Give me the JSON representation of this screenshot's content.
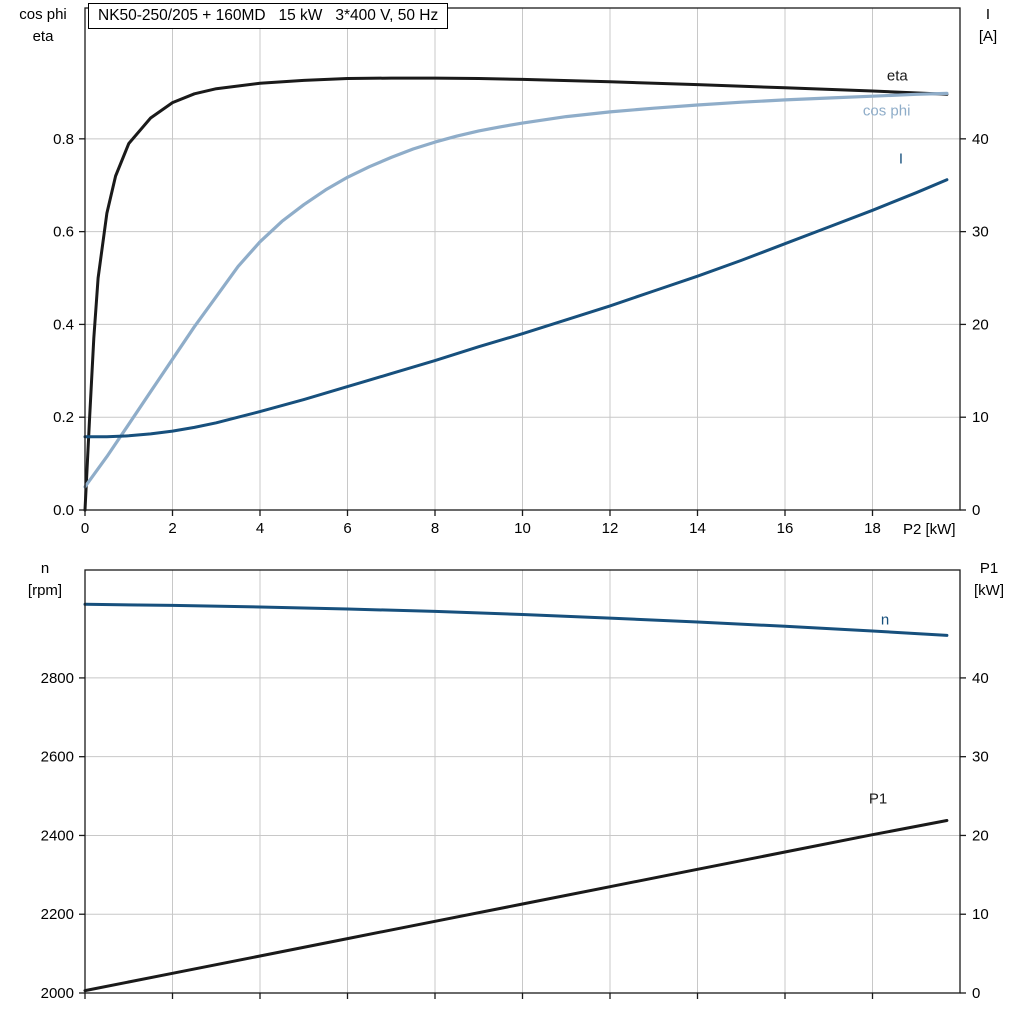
{
  "title_box": {
    "text": "NK50-250/205 + 160MD   15 kW   3*400 V, 50 Hz"
  },
  "axis_corner_labels": {
    "top_left": [
      "cos phi",
      "eta"
    ],
    "top_right": [
      "I",
      "[A]"
    ],
    "bottom_left": [
      "n",
      "[rpm]"
    ],
    "bottom_right": [
      "P1",
      "[kW]"
    ],
    "x_axis_right": "P2 [kW]"
  },
  "colors": {
    "background": "#ffffff",
    "axis": "#1a1a1a",
    "grid": "#c8c8c8",
    "black_curve": "#1a1a1a",
    "dark_blue_curve": "#17507d",
    "light_blue_curve": "#8fadc9"
  },
  "chart_data": [
    {
      "type": "line",
      "title": "NK50-250/205 + 160MD   15 kW   3*400 V, 50 Hz",
      "x_axis": {
        "label": "P2 [kW]",
        "range": [
          0,
          20
        ],
        "ticks": [
          0,
          2,
          4,
          6,
          8,
          10,
          12,
          14,
          16,
          18
        ],
        "tick_labels": [
          "0",
          "2",
          "4",
          "6",
          "8",
          "10",
          "12",
          "14",
          "16",
          "18"
        ]
      },
      "y_left": {
        "label": "cos phi / eta",
        "range": [
          0,
          1.082
        ],
        "ticks": [
          0,
          0.2,
          0.4,
          0.6,
          0.8
        ],
        "tick_labels": [
          "0.0",
          "0.2",
          "0.4",
          "0.6",
          "0.8"
        ]
      },
      "y_right": {
        "label": "I [A]",
        "range": [
          0,
          54.1
        ],
        "ticks": [
          0,
          10,
          20,
          30,
          40
        ],
        "tick_labels": [
          "0",
          "10",
          "20",
          "30",
          "40"
        ]
      },
      "grid": true,
      "legend_position": "inline-right",
      "series": [
        {
          "name": "eta",
          "axis": "left",
          "color": "#1a1a1a",
          "width": 3,
          "label_offset": [
            -60,
            -14
          ],
          "points": [
            [
              0,
              0
            ],
            [
              0.1,
              0.19
            ],
            [
              0.2,
              0.37
            ],
            [
              0.3,
              0.5
            ],
            [
              0.5,
              0.64
            ],
            [
              0.7,
              0.72
            ],
            [
              1,
              0.79
            ],
            [
              1.5,
              0.845
            ],
            [
              2,
              0.878
            ],
            [
              2.5,
              0.897
            ],
            [
              3,
              0.908
            ],
            [
              4,
              0.92
            ],
            [
              5,
              0.926
            ],
            [
              6,
              0.93
            ],
            [
              7,
              0.931
            ],
            [
              8,
              0.931
            ],
            [
              9,
              0.93
            ],
            [
              10,
              0.928
            ],
            [
              12,
              0.923
            ],
            [
              14,
              0.917
            ],
            [
              16,
              0.91
            ],
            [
              18,
              0.903
            ],
            [
              19.7,
              0.896
            ]
          ]
        },
        {
          "name": "cos phi",
          "axis": "left",
          "color": "#8fadc9",
          "width": 3.2,
          "label_offset": [
            -84,
            22
          ],
          "points": [
            [
              0,
              0.05
            ],
            [
              0.5,
              0.115
            ],
            [
              1,
              0.185
            ],
            [
              1.5,
              0.255
            ],
            [
              2,
              0.325
            ],
            [
              2.5,
              0.395
            ],
            [
              3,
              0.46
            ],
            [
              3.5,
              0.525
            ],
            [
              4,
              0.578
            ],
            [
              4.5,
              0.622
            ],
            [
              5,
              0.658
            ],
            [
              5.5,
              0.69
            ],
            [
              6,
              0.717
            ],
            [
              6.5,
              0.74
            ],
            [
              7,
              0.76
            ],
            [
              7.5,
              0.778
            ],
            [
              8,
              0.793
            ],
            [
              8.5,
              0.806
            ],
            [
              9,
              0.817
            ],
            [
              9.5,
              0.826
            ],
            [
              10,
              0.834
            ],
            [
              11,
              0.848
            ],
            [
              12,
              0.858
            ],
            [
              13,
              0.866
            ],
            [
              14,
              0.873
            ],
            [
              15,
              0.879
            ],
            [
              16,
              0.884
            ],
            [
              17,
              0.888
            ],
            [
              18,
              0.892
            ],
            [
              19,
              0.896
            ],
            [
              19.7,
              0.898
            ]
          ]
        },
        {
          "name": "I",
          "axis": "right",
          "color": "#17507d",
          "width": 3,
          "label_offset": [
            -48,
            -16
          ],
          "points": [
            [
              0,
              7.9
            ],
            [
              0.5,
              7.9
            ],
            [
              1,
              8
            ],
            [
              1.5,
              8.2
            ],
            [
              2,
              8.5
            ],
            [
              2.5,
              8.9
            ],
            [
              3,
              9.4
            ],
            [
              3.5,
              10
            ],
            [
              4,
              10.6
            ],
            [
              5,
              11.9
            ],
            [
              6,
              13.3
            ],
            [
              7,
              14.7
            ],
            [
              8,
              16.1
            ],
            [
              9,
              17.6
            ],
            [
              10,
              19
            ],
            [
              11,
              20.5
            ],
            [
              12,
              22
            ],
            [
              13,
              23.6
            ],
            [
              14,
              25.2
            ],
            [
              15,
              26.9
            ],
            [
              16,
              28.7
            ],
            [
              17,
              30.5
            ],
            [
              18,
              32.3
            ],
            [
              19,
              34.2
            ],
            [
              19.7,
              35.6
            ]
          ]
        }
      ]
    },
    {
      "type": "line",
      "title": "",
      "x_axis": {
        "label": "",
        "range": [
          0,
          20
        ],
        "ticks": [
          0,
          2,
          4,
          6,
          8,
          10,
          12,
          14,
          16,
          18
        ],
        "tick_labels": []
      },
      "y_left": {
        "label": "n [rpm]",
        "range": [
          2000,
          3074
        ],
        "ticks": [
          2000,
          2200,
          2400,
          2600,
          2800
        ],
        "tick_labels": [
          "2000",
          "2200",
          "2400",
          "2600",
          "2800"
        ]
      },
      "y_right": {
        "label": "P1 [kW]",
        "range": [
          0,
          53.7
        ],
        "ticks": [
          0,
          10,
          20,
          30,
          40
        ],
        "tick_labels": [
          "0",
          "10",
          "20",
          "30",
          "40"
        ]
      },
      "grid": true,
      "legend_position": "inline-right",
      "series": [
        {
          "name": "n",
          "axis": "left",
          "color": "#17507d",
          "width": 3,
          "label_offset": [
            -66,
            -11
          ],
          "points": [
            [
              0,
              2987
            ],
            [
              2,
              2984
            ],
            [
              4,
              2980
            ],
            [
              6,
              2975
            ],
            [
              8,
              2969
            ],
            [
              10,
              2961
            ],
            [
              12,
              2952
            ],
            [
              14,
              2942
            ],
            [
              16,
              2931
            ],
            [
              18,
              2919
            ],
            [
              19.7,
              2908
            ]
          ]
        },
        {
          "name": "P1",
          "axis": "right",
          "color": "#1a1a1a",
          "width": 3,
          "label_offset": [
            -78,
            -17
          ],
          "points": [
            [
              0,
              0.3
            ],
            [
              2,
              2.5
            ],
            [
              4,
              4.7
            ],
            [
              6,
              6.9
            ],
            [
              8,
              9.1
            ],
            [
              10,
              11.3
            ],
            [
              12,
              13.5
            ],
            [
              14,
              15.7
            ],
            [
              16,
              17.9
            ],
            [
              18,
              20.1
            ],
            [
              19.7,
              21.9
            ]
          ]
        }
      ]
    }
  ]
}
